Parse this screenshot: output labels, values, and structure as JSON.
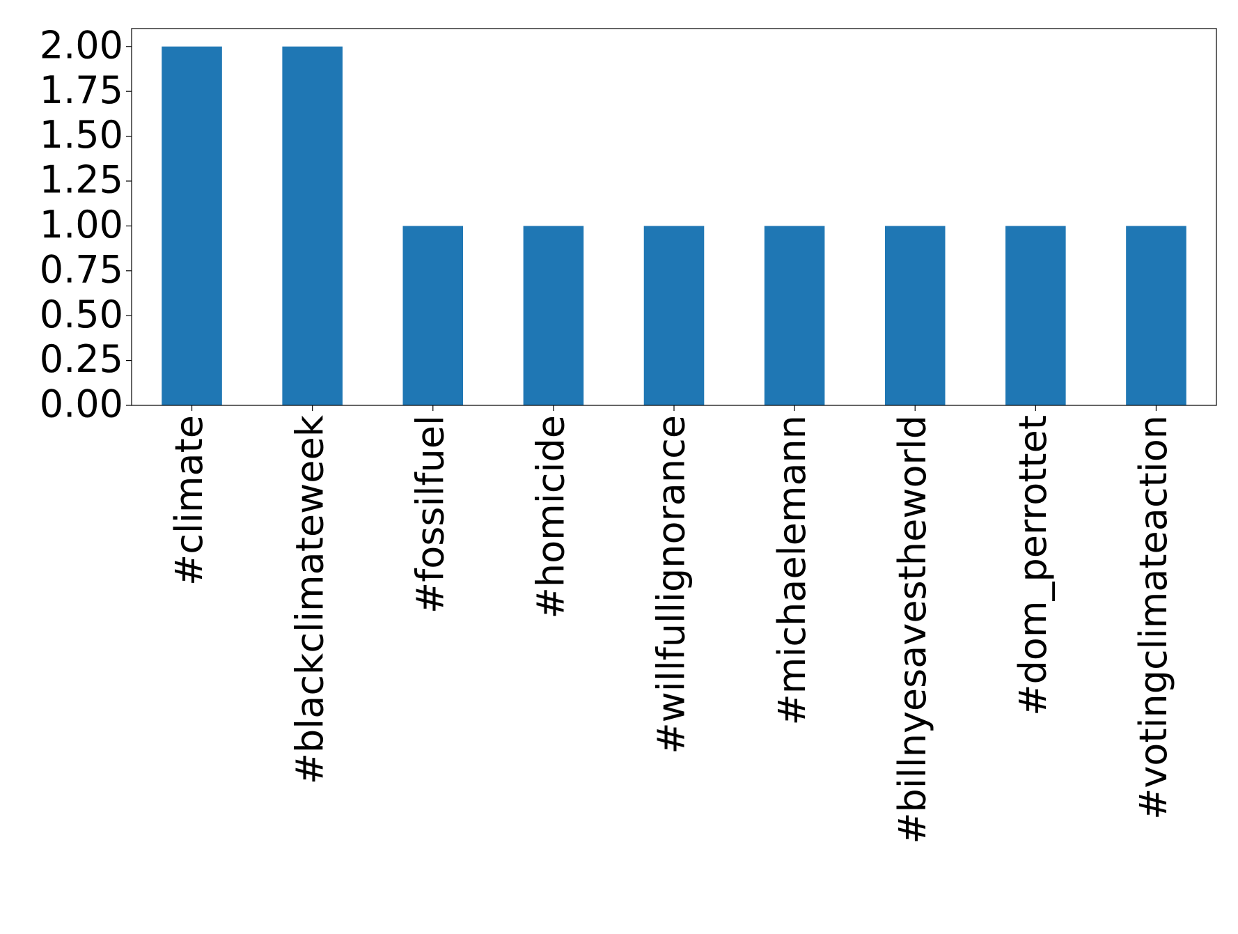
{
  "chart_data": {
    "type": "bar",
    "categories": [
      "#climate",
      "#blackclimateweek",
      "#fossilfuel",
      "#homicide",
      "#willfullignorance",
      "#michaelemann",
      "#billnyesavestheworld",
      "#dom_perrottet",
      "#votingclimateaction"
    ],
    "values": [
      2,
      2,
      1,
      1,
      1,
      1,
      1,
      1,
      1
    ],
    "color": "#1f77b4",
    "ylim": [
      0,
      2.1
    ],
    "yticks": [
      {
        "value": 0,
        "label": "0.00"
      },
      {
        "value": 0.25,
        "label": "0.25"
      },
      {
        "value": 0.5,
        "label": "0.50"
      },
      {
        "value": 0.75,
        "label": "0.75"
      },
      {
        "value": 1,
        "label": "1.00"
      },
      {
        "value": 1.25,
        "label": "1.25"
      },
      {
        "value": 1.5,
        "label": "1.50"
      },
      {
        "value": 1.75,
        "label": "1.75"
      },
      {
        "value": 2,
        "label": "2.00"
      }
    ],
    "grid": false
  }
}
